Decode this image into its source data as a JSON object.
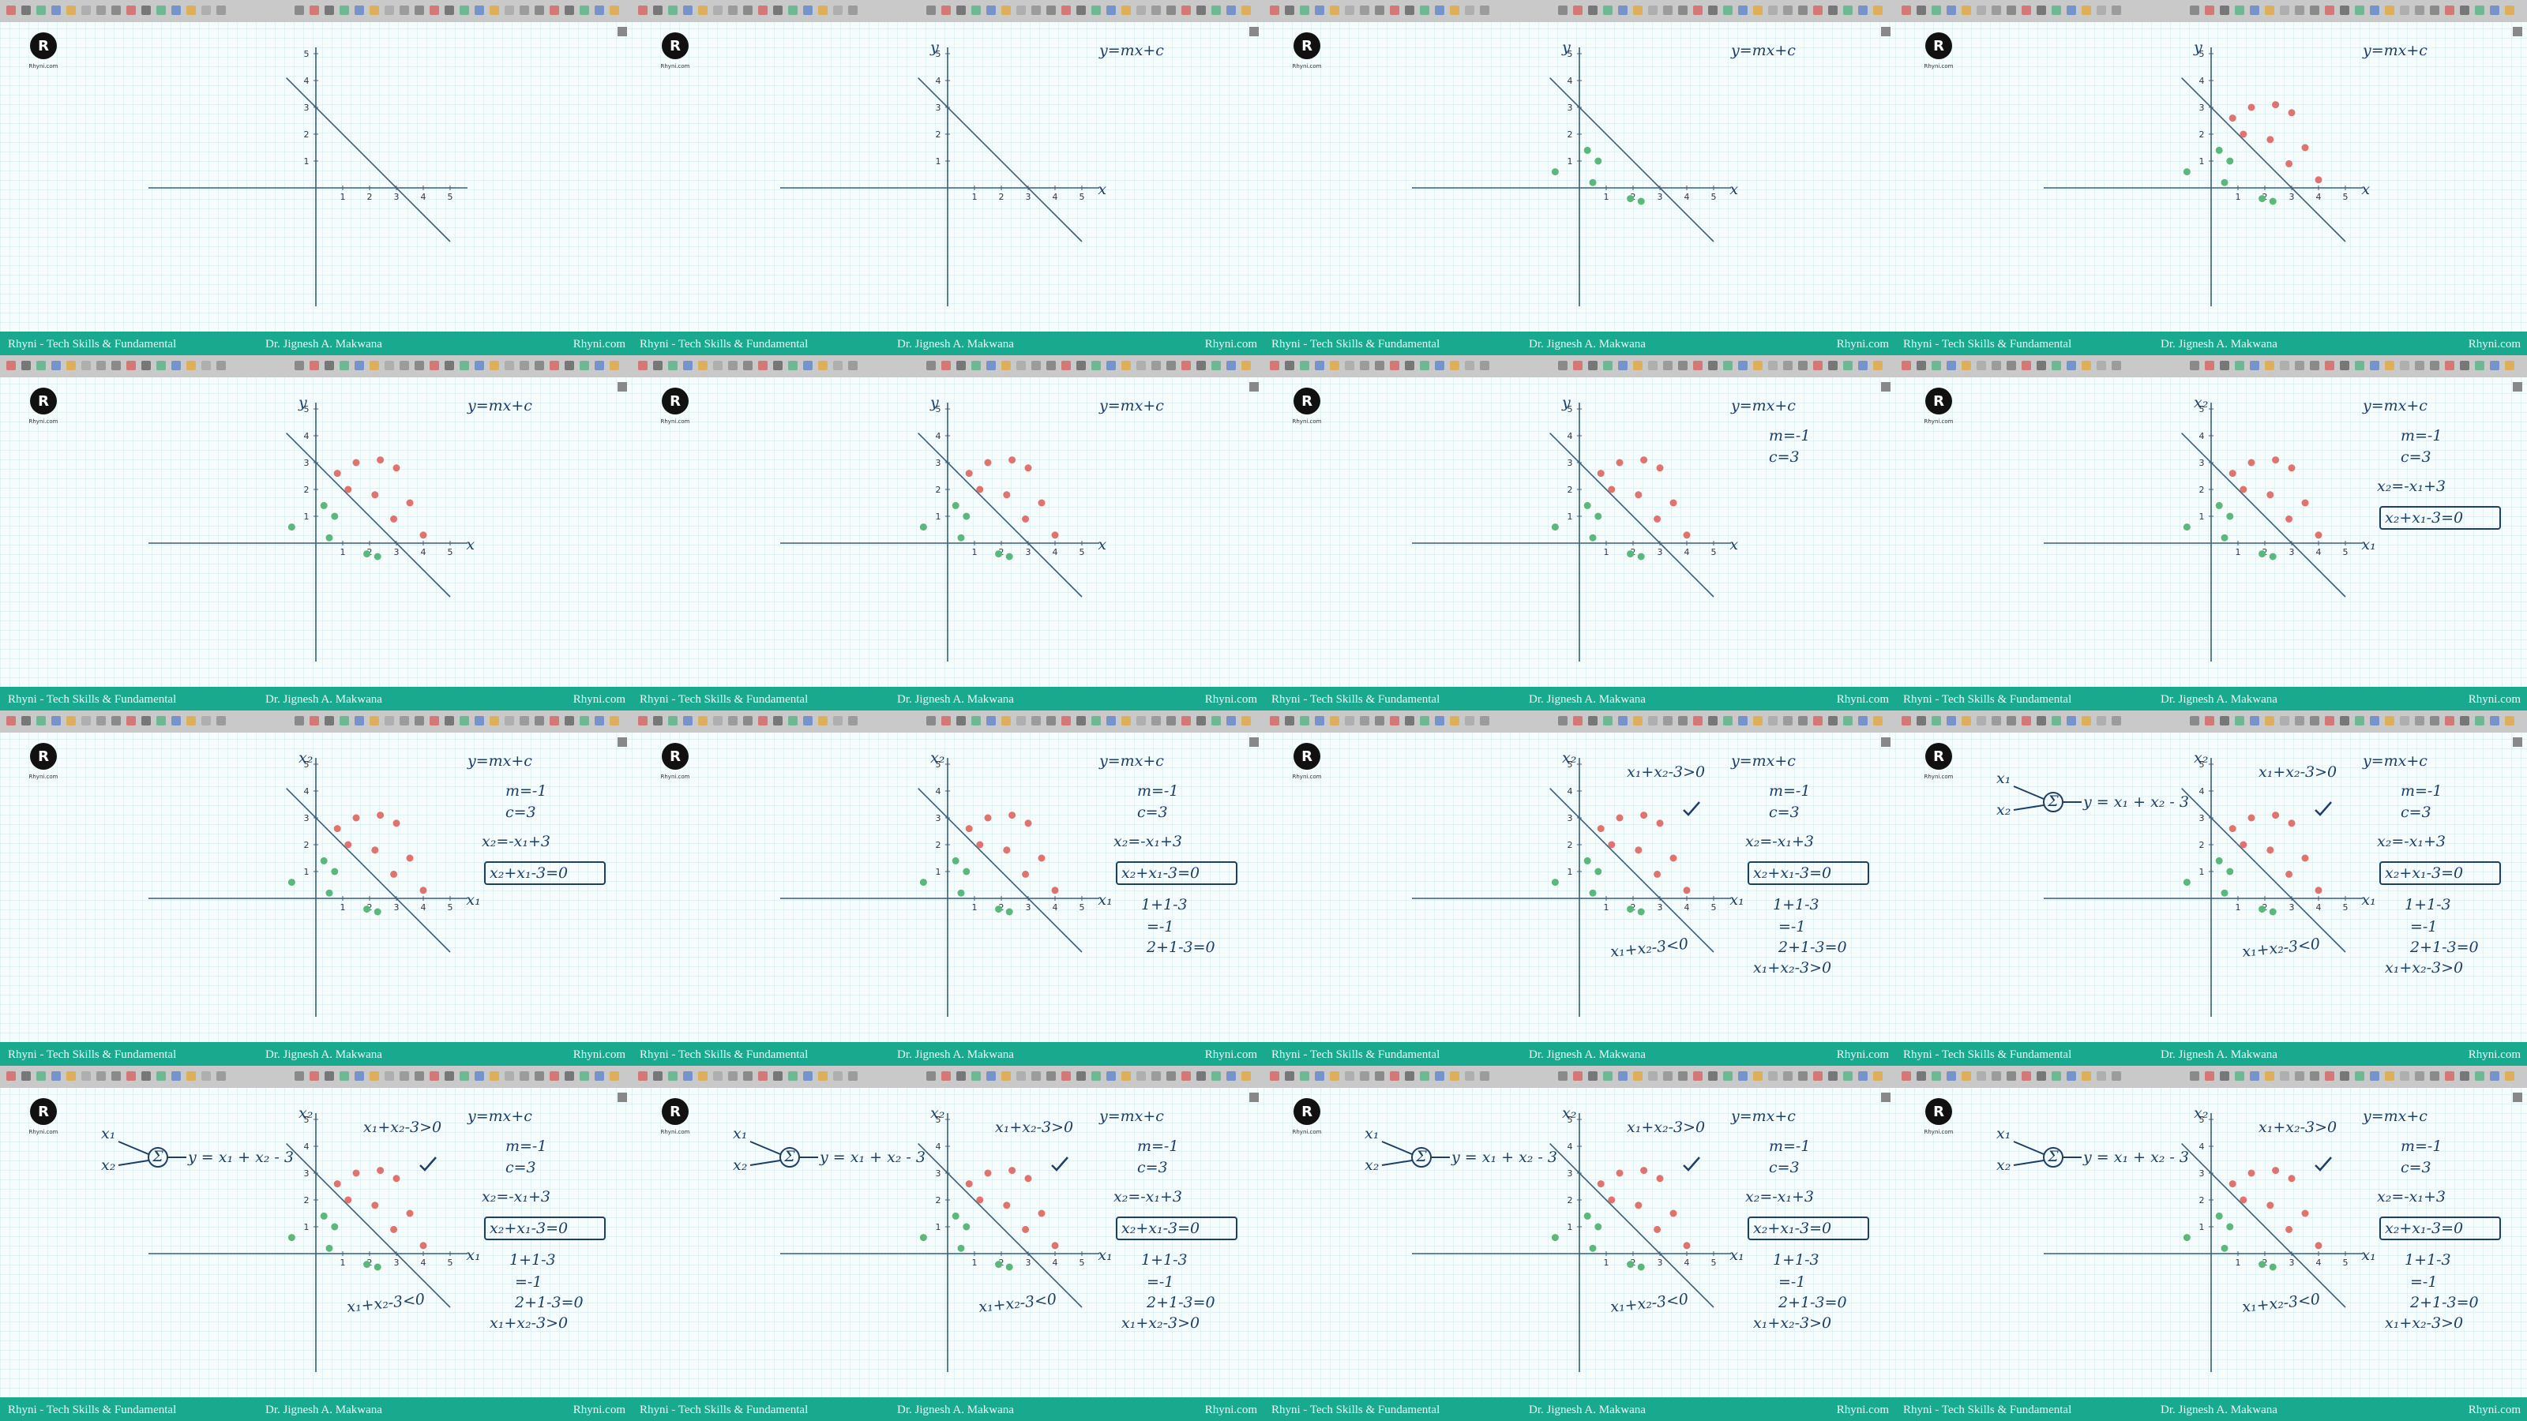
{
  "footer": {
    "channel": "Rhyni - Tech Skills & Fundamental",
    "author": "Dr. Jignesh A. Makwana",
    "site": "Rhyni.com"
  },
  "logo": {
    "letter": "R",
    "caption": "Rhyni.com"
  },
  "axis": {
    "xticks": [
      1,
      2,
      3,
      4,
      5
    ],
    "yticks": [
      1,
      2,
      3,
      4,
      5
    ]
  },
  "perceptron": {
    "sum": "Σ",
    "input_1": "x₁",
    "input_2": "x₂",
    "output": "y = x₁ + x₂ - 3"
  },
  "frames": [
    {
      "green_points": false,
      "red_points": false,
      "perceptron": false,
      "notes": []
    },
    {
      "y_label": "y",
      "x_label": "x",
      "green_points": false,
      "red_points": false,
      "perceptron": false,
      "notes": [
        "y=mx+c"
      ]
    },
    {
      "y_label": "y",
      "x_label": "x",
      "green_points": true,
      "red_points": false,
      "perceptron": false,
      "notes": [
        "y=mx+c"
      ]
    },
    {
      "y_label": "y",
      "x_label": "x",
      "green_points": true,
      "red_points": true,
      "perceptron": false,
      "notes": [
        "y=mx+c"
      ]
    },
    {
      "y_label": "y",
      "x_label": "x",
      "green_points": true,
      "red_points": true,
      "perceptron": false,
      "notes": [
        "y=mx+c"
      ]
    },
    {
      "y_label": "y",
      "x_label": "x",
      "green_points": true,
      "red_points": true,
      "perceptron": false,
      "notes": [
        "y=mx+c"
      ]
    },
    {
      "y_label": "y",
      "x_label": "x",
      "green_points": true,
      "red_points": true,
      "perceptron": false,
      "notes": [
        "y=mx+c",
        "m=-1",
        "c=3"
      ]
    },
    {
      "y_label": "x₂",
      "x_label": "x₁",
      "green_points": true,
      "red_points": true,
      "perceptron": false,
      "notes": [
        "y=mx+c",
        "m=-1",
        "c=3",
        "x₂=-x₁+3",
        "x₂+x₁-3=0"
      ]
    },
    {
      "y_label": "x₂",
      "x_label": "x₁",
      "green_points": true,
      "red_points": true,
      "perceptron": false,
      "notes": [
        "y=mx+c",
        "m=-1",
        "c=3",
        "x₂=-x₁+3",
        "x₂+x₁-3=0"
      ]
    },
    {
      "y_label": "x₂",
      "x_label": "x₁",
      "green_points": true,
      "red_points": true,
      "perceptron": false,
      "notes": [
        "y=mx+c",
        "m=-1",
        "c=3",
        "x₂=-x₁+3",
        "x₂+x₁-3=0",
        "1+1-3",
        "=-1",
        "2+1-3=0"
      ]
    },
    {
      "y_label": "x₂",
      "x_label": "x₁",
      "green_points": true,
      "red_points": true,
      "perceptron": false,
      "notes": [
        "y=mx+c",
        "m=-1",
        "c=3",
        "x₂=-x₁+3",
        "x₂+x₁-3=0",
        "1+1-3",
        "=-1",
        "2+1-3=0",
        "x₁+x₂-3>0",
        "x₁+x₂-3>0",
        "x₁+x₂-3<0"
      ]
    },
    {
      "y_label": "x₂",
      "x_label": "x₁",
      "green_points": true,
      "red_points": true,
      "perceptron": true,
      "notes": [
        "y=mx+c",
        "m=-1",
        "c=3",
        "x₂=-x₁+3",
        "x₂+x₁-3=0",
        "1+1-3",
        "=-1",
        "2+1-3=0",
        "x₁+x₂-3>0",
        "x₁+x₂-3>0",
        "x₁+x₂-3<0"
      ]
    },
    {
      "y_label": "x₂",
      "x_label": "x₁",
      "green_points": true,
      "red_points": true,
      "perceptron": true,
      "notes": [
        "y=mx+c",
        "m=-1",
        "c=3",
        "x₂=-x₁+3",
        "x₂+x₁-3=0",
        "1+1-3",
        "=-1",
        "2+1-3=0",
        "x₁+x₂-3>0",
        "x₁+x₂-3>0",
        "x₁+x₂-3<0"
      ]
    },
    {
      "y_label": "x₂",
      "x_label": "x₁",
      "green_points": true,
      "red_points": true,
      "perceptron": true,
      "notes": [
        "y=mx+c",
        "m=-1",
        "c=3",
        "x₂=-x₁+3",
        "x₂+x₁-3=0",
        "1+1-3",
        "=-1",
        "2+1-3=0",
        "x₁+x₂-3>0",
        "x₁+x₂-3>0",
        "x₁+x₂-3<0"
      ]
    },
    {
      "y_label": "x₂",
      "x_label": "x₁",
      "green_points": true,
      "red_points": true,
      "perceptron": true,
      "notes": [
        "y=mx+c",
        "m=-1",
        "c=3",
        "x₂=-x₁+3",
        "x₂+x₁-3=0",
        "1+1-3",
        "=-1",
        "2+1-3=0",
        "x₁+x₂-3>0",
        "x₁+x₂-3>0",
        "x₁+x₂-3<0"
      ]
    },
    {
      "y_label": "x₂",
      "x_label": "x₁",
      "green_points": true,
      "red_points": true,
      "perceptron": true,
      "notes": [
        "y=mx+c",
        "m=-1",
        "c=3",
        "x₂=-x₁+3",
        "x₂+x₁-3=0",
        "1+1-3",
        "=-1",
        "2+1-3=0",
        "x₁+x₂-3>0",
        "x₁+x₂-3>0",
        "x₁+x₂-3<0"
      ]
    }
  ]
}
